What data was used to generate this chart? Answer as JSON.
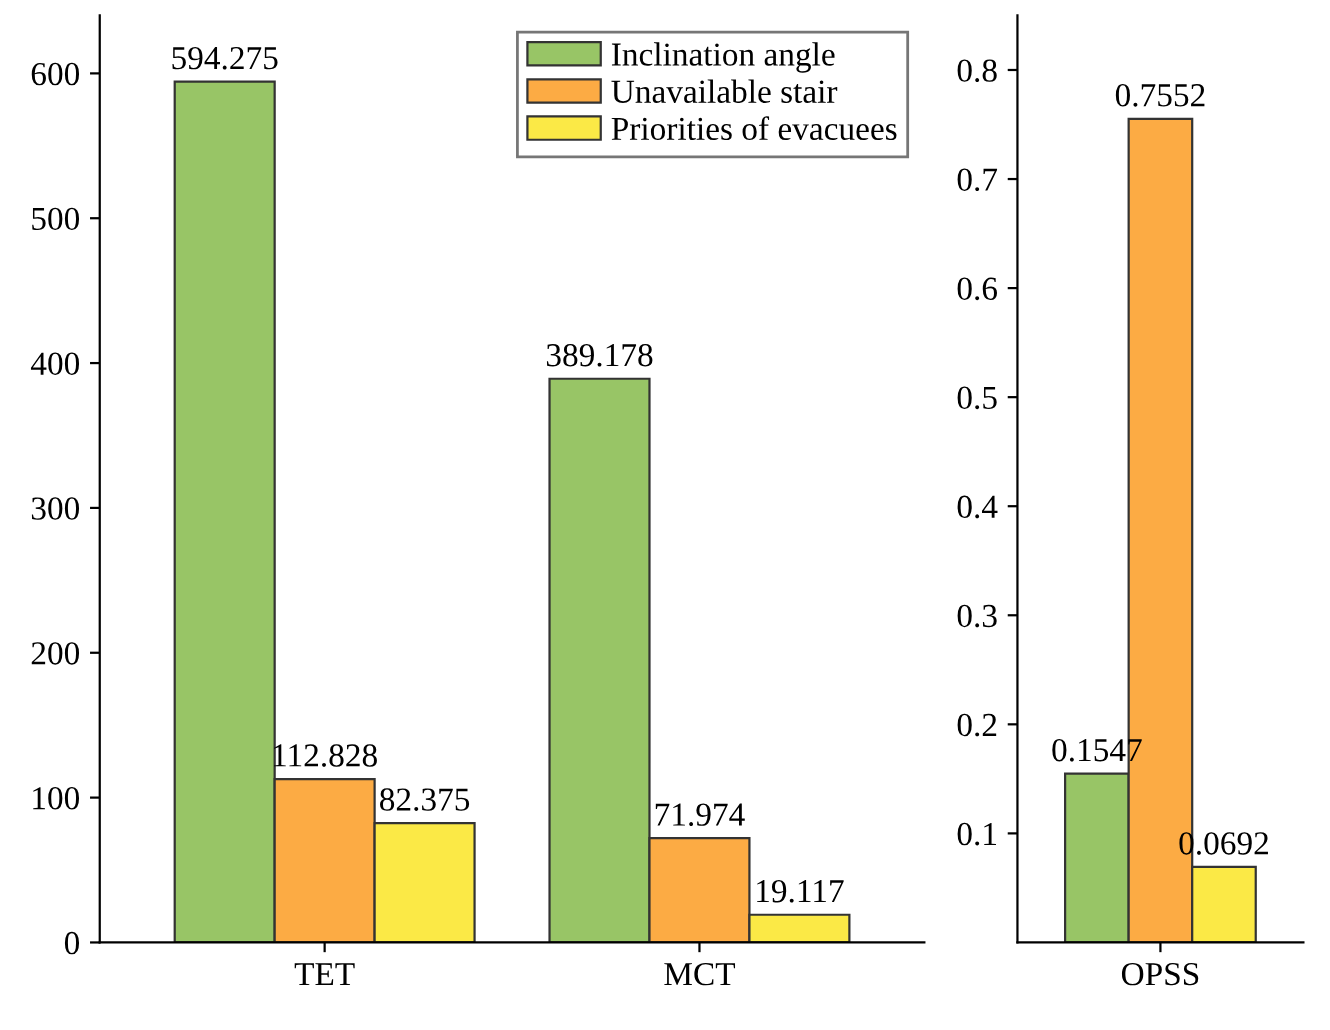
{
  "chart_data": [
    {
      "type": "bar",
      "categories": [
        "TET",
        "MCT"
      ],
      "ylim": [
        0,
        640
      ],
      "yticks": [
        0,
        100,
        200,
        300,
        400,
        500,
        600
      ],
      "grid": false,
      "legend": "top right",
      "data_labels": true,
      "series": [
        {
          "name": "Inclination angle",
          "color": "#98c566",
          "values": [
            594.275,
            389.178
          ]
        },
        {
          "name": "Unavailable stair",
          "color": "#fcab44",
          "values": [
            112.828,
            71.974
          ]
        },
        {
          "name": "Priorities of evacuees",
          "color": "#fbe946",
          "values": [
            82.375,
            19.117
          ]
        }
      ]
    },
    {
      "type": "bar",
      "categories": [
        "OPSS"
      ],
      "ylim": [
        0,
        0.85
      ],
      "yticks": [
        0.1,
        0.2,
        0.3,
        0.4,
        0.5,
        0.6,
        0.7,
        0.8
      ],
      "grid": false,
      "legend": false,
      "data_labels": true,
      "series": [
        {
          "color": "#98c566",
          "values": [
            0.1547
          ]
        },
        {
          "color": "#fcab44",
          "values": [
            0.7552
          ]
        },
        {
          "color": "#fbe946",
          "values": [
            0.0692
          ]
        }
      ]
    }
  ]
}
